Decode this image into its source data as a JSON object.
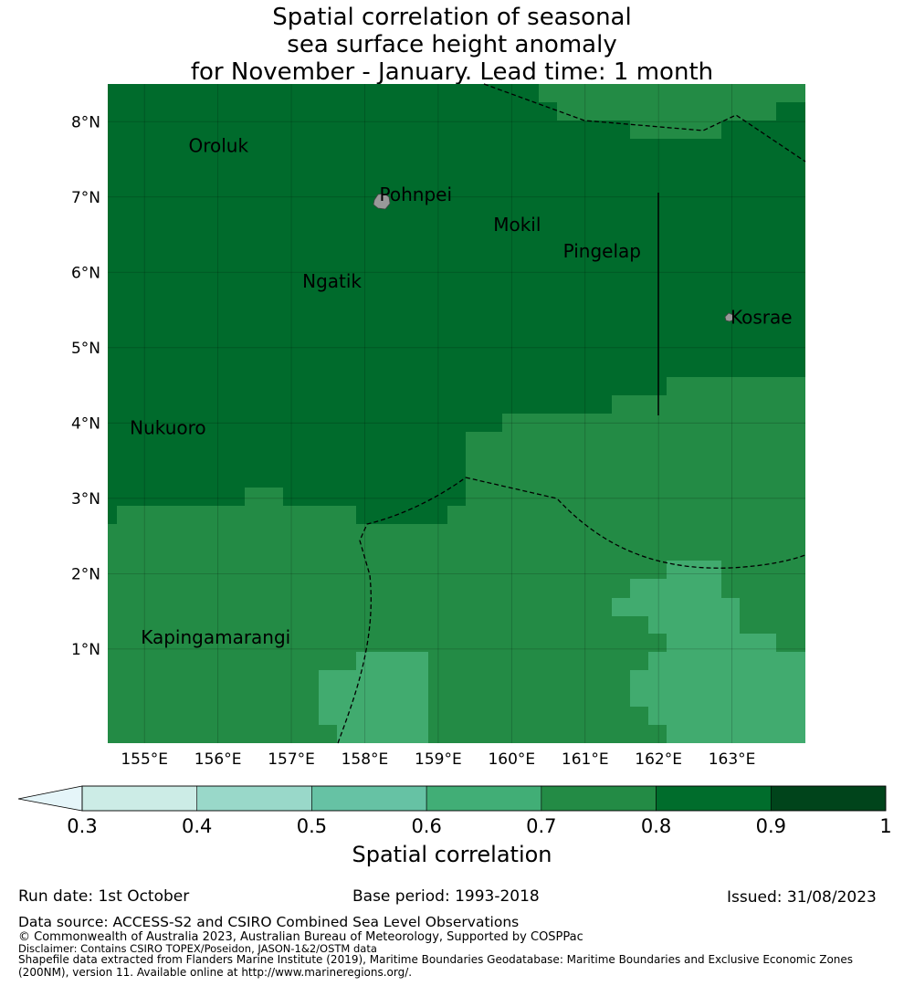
{
  "title": {
    "line1": "Spatial correlation of seasonal",
    "line2": "sea surface height anomaly",
    "line3": "for November - January. Lead time: 1 month"
  },
  "map": {
    "lon_range": [
      154.5,
      164.0
    ],
    "lat_range": [
      -0.25,
      8.5
    ],
    "lon_ticks": [
      {
        "value": 155,
        "label": "155°E"
      },
      {
        "value": 156,
        "label": "156°E"
      },
      {
        "value": 157,
        "label": "157°E"
      },
      {
        "value": 158,
        "label": "158°E"
      },
      {
        "value": 159,
        "label": "159°E"
      },
      {
        "value": 160,
        "label": "160°E"
      },
      {
        "value": 161,
        "label": "161°E"
      },
      {
        "value": 162,
        "label": "162°E"
      },
      {
        "value": 163,
        "label": "163°E"
      }
    ],
    "lat_ticks": [
      {
        "value": 1,
        "label": "1°N"
      },
      {
        "value": 2,
        "label": "2°N"
      },
      {
        "value": 3,
        "label": "3°N"
      },
      {
        "value": 4,
        "label": "4°N"
      },
      {
        "value": 5,
        "label": "5°N"
      },
      {
        "value": 6,
        "label": "6°N"
      },
      {
        "value": 7,
        "label": "7°N"
      },
      {
        "value": 8,
        "label": "8°N"
      }
    ],
    "places": [
      {
        "name": "Oroluk",
        "lon": 155.6,
        "lat": 7.6
      },
      {
        "name": "Pohnpei",
        "lon": 158.2,
        "lat": 6.95
      },
      {
        "name": "Mokil",
        "lon": 159.75,
        "lat": 6.55
      },
      {
        "name": "Pingelap",
        "lon": 160.7,
        "lat": 6.2
      },
      {
        "name": "Ngatik",
        "lon": 157.15,
        "lat": 5.8
      },
      {
        "name": "Kosrae",
        "lon": 162.98,
        "lat": 5.32
      },
      {
        "name": "Nukuoro",
        "lon": 154.8,
        "lat": 3.85
      },
      {
        "name": "Kapingamarangi",
        "lon": 154.95,
        "lat": 1.07
      }
    ],
    "colors": {
      "c0_9": "#006b2c",
      "c0_8": "#238b45",
      "c0_7": "#41ab6f",
      "land": "#999999"
    }
  },
  "colorbar": {
    "label": "Spatial correlation",
    "ticks": [
      "0.3",
      "0.4",
      "0.5",
      "0.6",
      "0.7",
      "0.8",
      "0.9",
      "1"
    ],
    "colors": [
      "#ccece6",
      "#99d8c9",
      "#66c2a4",
      "#41ae76",
      "#238b45",
      "#006d2c",
      "#00441b"
    ],
    "extend_color": "#e5f5f9"
  },
  "footer": {
    "run_date": "Run date: 1st October",
    "base_period": "Base period: 1993-2018",
    "issued": "Issued: 31/08/2023",
    "data_source": "Data source: ACCESS-S2 and CSIRO Combined Sea Level Observations",
    "copyright": "© Commonwealth of Australia 2023, Australian Bureau of Meteorology, Supported by COSPPac",
    "disclaimer": "Disclaimer: Contains CSIRO TOPEX/Poseidon, JASON-1&2/OSTM data",
    "shapefile_line1": "Shapefile data extracted from Flanders Marine Institute (2019), Maritime Boundaries Geodatabase: Maritime Boundaries and Exclusive Economic Zones",
    "shapefile_line2": "(200NM), version 11. Available online at http://www.marineregions.org/."
  }
}
